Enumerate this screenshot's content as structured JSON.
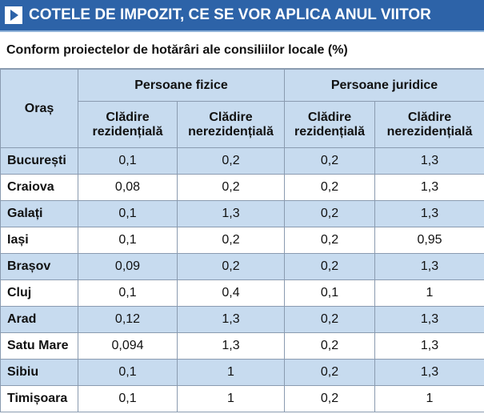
{
  "header": {
    "title": "COTELE DE IMPOZIT, CE SE VOR APLICA ANUL VIITOR"
  },
  "subtitle": "Conform proiectelor de hotărâri ale consiliilor locale (%)",
  "table": {
    "city_header": "Oraș",
    "groups": [
      "Persoane fizice",
      "Persoane juridice"
    ],
    "subheaders": [
      [
        "Clădire",
        "rezidențială"
      ],
      [
        "Clădire",
        "nerezidențială"
      ],
      [
        "Clădire",
        "rezidențială"
      ],
      [
        "Clădire",
        "nerezidențială"
      ]
    ],
    "rows": [
      [
        "București",
        "0,1",
        "0,2",
        "0,2",
        "1,3"
      ],
      [
        "Craiova",
        "0,08",
        "0,2",
        "0,2",
        "1,3"
      ],
      [
        "Galați",
        "0,1",
        "1,3",
        "0,2",
        "1,3"
      ],
      [
        "Iași",
        "0,1",
        "0,2",
        "0,2",
        "0,95"
      ],
      [
        "Brașov",
        "0,09",
        "0,2",
        "0,2",
        "1,3"
      ],
      [
        "Cluj",
        "0,1",
        "0,4",
        "0,1",
        "1"
      ],
      [
        "Arad",
        "0,12",
        "1,3",
        "0,2",
        "1,3"
      ],
      [
        "Satu Mare",
        "0,094",
        "1,3",
        "0,2",
        "1,3"
      ],
      [
        "Sibiu",
        "0,1",
        "1",
        "0,2",
        "1,3"
      ],
      [
        "Timișoara",
        "0,1",
        "1",
        "0,2",
        "1"
      ]
    ]
  }
}
